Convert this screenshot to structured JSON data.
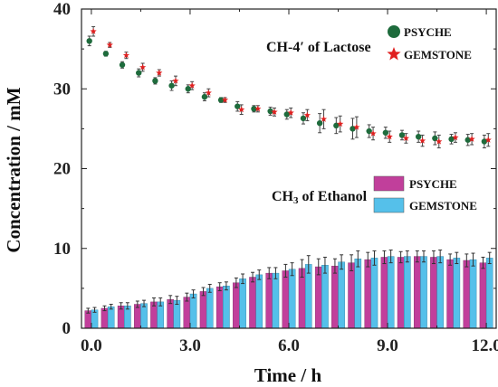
{
  "chart_data": {
    "type": "scatter+bar",
    "xlabel": "Time / h",
    "ylabel": "Concentration / mM",
    "xlim": [
      -0.3,
      12.3
    ],
    "ylim": [
      0,
      40
    ],
    "xticks": [
      "0.0",
      "3.0",
      "6.0",
      "9.0",
      "12.0"
    ],
    "yticks": [
      "0",
      "10",
      "20",
      "30",
      "40"
    ],
    "annotations": {
      "lactose": "CH-4′ of Lactose",
      "ethanol_prefix": "CH",
      "ethanol_sub": "3",
      "ethanol_suffix": " of Ethanol"
    },
    "colors": {
      "psyche_scatter": "#1e6b3c",
      "gemstone_scatter": "#e02020",
      "psyche_bar": "#c13f9b",
      "gemstone_bar": "#55c0ea"
    },
    "scatter_legend": [
      {
        "name": "PSYCHE",
        "marker": "circle"
      },
      {
        "name": "GEMSTONE",
        "marker": "star"
      }
    ],
    "bar_legend": [
      {
        "name": "PSYCHE"
      },
      {
        "name": "GEMSTONE"
      }
    ],
    "lactose": {
      "x": [
        0.0,
        0.5,
        1.0,
        1.5,
        2.0,
        2.5,
        3.0,
        3.5,
        4.0,
        4.5,
        5.0,
        5.5,
        6.0,
        6.5,
        7.0,
        7.5,
        8.0,
        8.5,
        9.0,
        9.5,
        10.0,
        10.5,
        11.0,
        11.5,
        12.0
      ],
      "psyche": [
        36.0,
        34.4,
        33.0,
        32.0,
        31.0,
        30.4,
        30.0,
        29.0,
        28.6,
        27.8,
        27.5,
        27.2,
        26.8,
        26.3,
        25.7,
        25.4,
        25.0,
        24.7,
        24.5,
        24.2,
        24.0,
        23.8,
        23.7,
        23.6,
        23.4
      ],
      "gemstone": [
        37.2,
        35.5,
        34.2,
        32.7,
        32.0,
        31.0,
        30.4,
        29.5,
        28.6,
        27.4,
        27.5,
        27.1,
        27.0,
        26.7,
        26.2,
        25.6,
        25.2,
        24.4,
        24.0,
        23.8,
        23.5,
        23.4,
        23.9,
        23.7,
        23.6
      ],
      "err": [
        0.6,
        0.3,
        0.4,
        0.5,
        0.4,
        0.6,
        0.5,
        0.5,
        0.3,
        0.6,
        0.4,
        0.5,
        0.6,
        0.7,
        1.2,
        1.0,
        1.3,
        0.8,
        0.7,
        0.6,
        0.7,
        0.8,
        0.6,
        0.7,
        0.8
      ]
    },
    "ethanol": {
      "x": [
        0.0,
        0.5,
        1.0,
        1.5,
        2.0,
        2.5,
        3.0,
        3.5,
        4.0,
        4.5,
        5.0,
        5.5,
        6.0,
        6.5,
        7.0,
        7.5,
        8.0,
        8.5,
        9.0,
        9.5,
        10.0,
        10.5,
        11.0,
        11.5,
        12.0
      ],
      "psyche": [
        2.2,
        2.5,
        2.8,
        3.0,
        3.3,
        3.6,
        3.9,
        4.6,
        5.2,
        5.7,
        6.4,
        6.9,
        7.2,
        7.5,
        7.7,
        7.8,
        8.2,
        8.6,
        8.9,
        8.9,
        9.0,
        8.9,
        8.6,
        8.5,
        8.2
      ],
      "gemstone": [
        2.3,
        2.7,
        2.8,
        3.1,
        3.3,
        3.5,
        4.3,
        5.0,
        5.3,
        6.2,
        6.7,
        6.9,
        7.4,
        8.0,
        7.9,
        8.3,
        8.7,
        8.8,
        9.0,
        9.0,
        9.0,
        9.0,
        8.8,
        8.6,
        8.8
      ],
      "err": [
        0.3,
        0.3,
        0.4,
        0.4,
        0.5,
        0.5,
        0.5,
        0.5,
        0.5,
        0.6,
        0.6,
        0.7,
        0.8,
        1.1,
        1.0,
        0.9,
        1.0,
        0.9,
        0.8,
        0.7,
        0.7,
        0.8,
        0.7,
        0.8,
        0.7
      ]
    }
  }
}
